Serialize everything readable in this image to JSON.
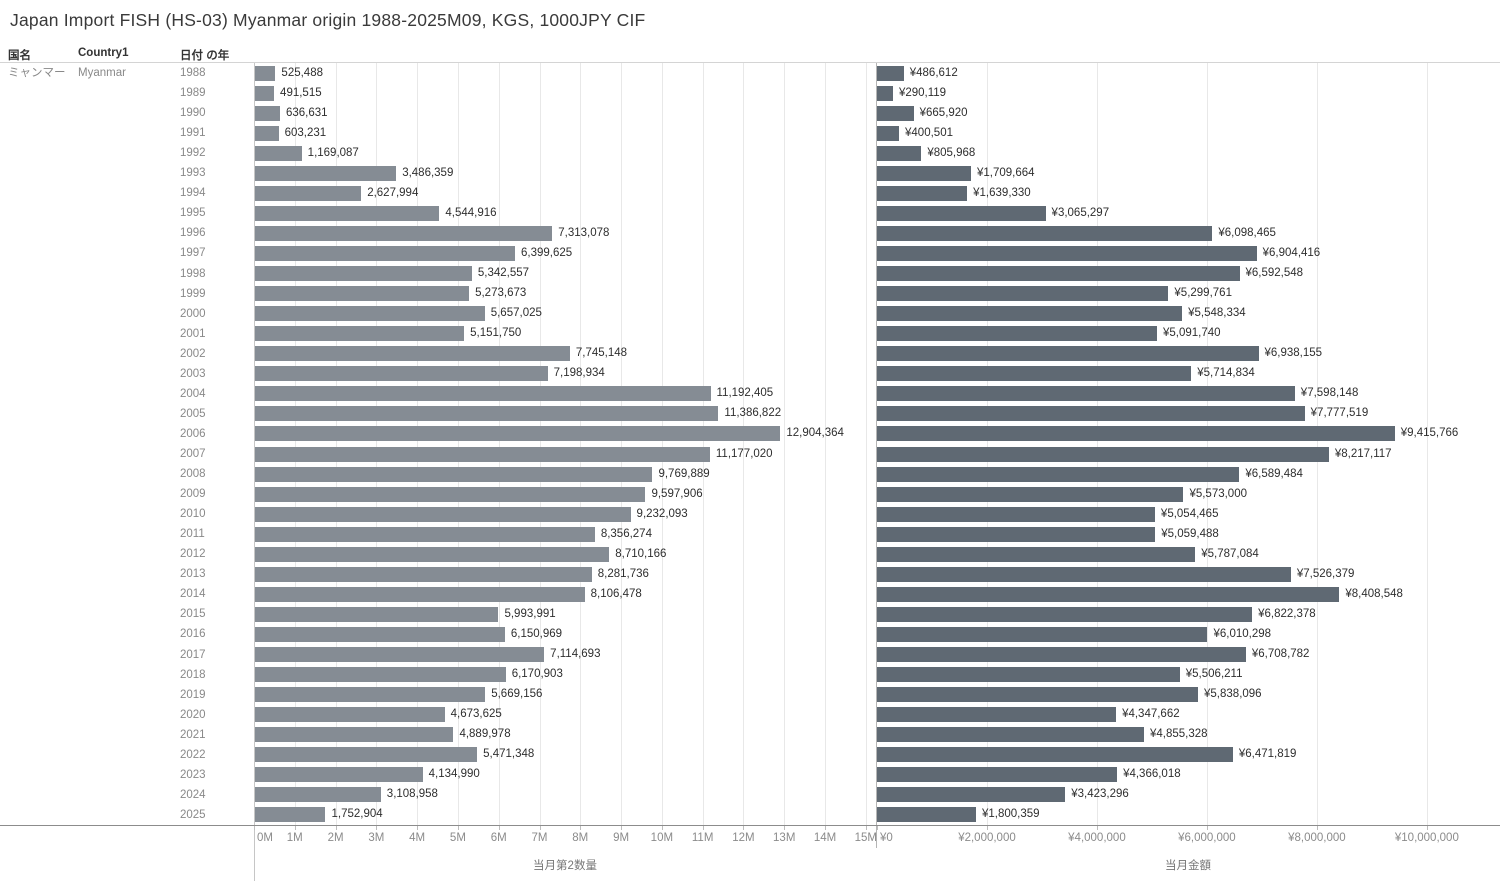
{
  "title": "Japan Import FISH (HS-03) Myanmar origin 1988-2025M09, KGS, 1000JPY CIF",
  "table": {
    "headers": {
      "country_jp": "国名",
      "country_en": "Country1",
      "year": "日付 の年"
    },
    "row": {
      "country_jp": "ミャンマー",
      "country_en": "Myanmar"
    }
  },
  "colors": {
    "quantity_bar": "#858c94",
    "amount_bar": "#5f6973",
    "gridline": "#e8e8e8",
    "bar_label": "#2e2e2e",
    "row_label": "#898989"
  },
  "chart_data": [
    {
      "type": "bar",
      "orientation": "horizontal",
      "name": "quantity",
      "xlabel": "当月第2数量",
      "xlim": [
        0,
        15250000
      ],
      "grid": true,
      "gridlines": [
        1000000,
        2000000,
        3000000,
        4000000,
        5000000,
        6000000,
        7000000,
        8000000,
        9000000,
        10000000,
        11000000,
        12000000,
        13000000,
        14000000,
        15000000
      ],
      "ticks": [
        {
          "value": 0,
          "label": "0M"
        },
        {
          "value": 1000000,
          "label": "1M"
        },
        {
          "value": 2000000,
          "label": "2M"
        },
        {
          "value": 3000000,
          "label": "3M"
        },
        {
          "value": 4000000,
          "label": "4M"
        },
        {
          "value": 5000000,
          "label": "5M"
        },
        {
          "value": 6000000,
          "label": "6M"
        },
        {
          "value": 7000000,
          "label": "7M"
        },
        {
          "value": 8000000,
          "label": "8M"
        },
        {
          "value": 9000000,
          "label": "9M"
        },
        {
          "value": 10000000,
          "label": "10M"
        },
        {
          "value": 11000000,
          "label": "11M"
        },
        {
          "value": 12000000,
          "label": "12M"
        },
        {
          "value": 13000000,
          "label": "13M"
        },
        {
          "value": 14000000,
          "label": "14M"
        },
        {
          "value": 15000000,
          "label": "15M"
        }
      ],
      "categories": [
        "1988",
        "1989",
        "1990",
        "1991",
        "1992",
        "1993",
        "1994",
        "1995",
        "1996",
        "1997",
        "1998",
        "1999",
        "2000",
        "2001",
        "2002",
        "2003",
        "2004",
        "2005",
        "2006",
        "2007",
        "2008",
        "2009",
        "2010",
        "2011",
        "2012",
        "2013",
        "2014",
        "2015",
        "2016",
        "2017",
        "2018",
        "2019",
        "2020",
        "2021",
        "2022",
        "2023",
        "2024",
        "2025"
      ],
      "values": [
        525488,
        491515,
        636631,
        603231,
        1169087,
        3486359,
        2627994,
        4544916,
        7313078,
        6399625,
        5342557,
        5273673,
        5657025,
        5151750,
        7745148,
        7198934,
        11192405,
        11386822,
        12904364,
        11177020,
        9769889,
        9597906,
        9232093,
        8356274,
        8710166,
        8281736,
        8106478,
        5993991,
        6150969,
        7114693,
        6170903,
        5669156,
        4673625,
        4889978,
        5471348,
        4134990,
        3108958,
        1752904
      ],
      "labels": [
        "525,488",
        "491,515",
        "636,631",
        "603,231",
        "1,169,087",
        "3,486,359",
        "2,627,994",
        "4,544,916",
        "7,313,078",
        "6,399,625",
        "5,342,557",
        "5,273,673",
        "5,657,025",
        "5,151,750",
        "7,745,148",
        "7,198,934",
        "11,192,405",
        "11,386,822",
        "12,904,364",
        "11,177,020",
        "9,769,889",
        "9,597,906",
        "9,232,093",
        "8,356,274",
        "8,710,166",
        "8,281,736",
        "8,106,478",
        "5,993,991",
        "6,150,969",
        "7,114,693",
        "6,170,903",
        "5,669,156",
        "4,673,625",
        "4,889,978",
        "5,471,348",
        "4,134,990",
        "3,108,958",
        "1,752,904"
      ]
    },
    {
      "type": "bar",
      "orientation": "horizontal",
      "name": "amount",
      "xlabel": "当月金額",
      "xlim": [
        0,
        11330000
      ],
      "grid": true,
      "gridlines": [
        2000000,
        4000000,
        6000000,
        8000000,
        10000000
      ],
      "ticks": [
        {
          "value": 0,
          "label": "¥0"
        },
        {
          "value": 2000000,
          "label": "¥2,000,000"
        },
        {
          "value": 4000000,
          "label": "¥4,000,000"
        },
        {
          "value": 6000000,
          "label": "¥6,000,000"
        },
        {
          "value": 8000000,
          "label": "¥8,000,000"
        },
        {
          "value": 10000000,
          "label": "¥10,000,000"
        }
      ],
      "categories": [
        "1988",
        "1989",
        "1990",
        "1991",
        "1992",
        "1993",
        "1994",
        "1995",
        "1996",
        "1997",
        "1998",
        "1999",
        "2000",
        "2001",
        "2002",
        "2003",
        "2004",
        "2005",
        "2006",
        "2007",
        "2008",
        "2009",
        "2010",
        "2011",
        "2012",
        "2013",
        "2014",
        "2015",
        "2016",
        "2017",
        "2018",
        "2019",
        "2020",
        "2021",
        "2022",
        "2023",
        "2024",
        "2025"
      ],
      "values": [
        486612,
        290119,
        665920,
        400501,
        805968,
        1709664,
        1639330,
        3065297,
        6098465,
        6904416,
        6592548,
        5299761,
        5548334,
        5091740,
        6938155,
        5714834,
        7598148,
        7777519,
        9415766,
        8217117,
        6589484,
        5573000,
        5054465,
        5059488,
        5787084,
        7526379,
        8408548,
        6822378,
        6010298,
        6708782,
        5506211,
        5838096,
        4347662,
        4855328,
        6471819,
        4366018,
        3423296,
        1800359
      ],
      "labels": [
        "¥486,612",
        "¥290,119",
        "¥665,920",
        "¥400,501",
        "¥805,968",
        "¥1,709,664",
        "¥1,639,330",
        "¥3,065,297",
        "¥6,098,465",
        "¥6,904,416",
        "¥6,592,548",
        "¥5,299,761",
        "¥5,548,334",
        "¥5,091,740",
        "¥6,938,155",
        "¥5,714,834",
        "¥7,598,148",
        "¥7,777,519",
        "¥9,415,766",
        "¥8,217,117",
        "¥6,589,484",
        "¥5,573,000",
        "¥5,054,465",
        "¥5,059,488",
        "¥5,787,084",
        "¥7,526,379",
        "¥8,408,548",
        "¥6,822,378",
        "¥6,010,298",
        "¥6,708,782",
        "¥5,506,211",
        "¥5,838,096",
        "¥4,347,662",
        "¥4,855,328",
        "¥6,471,819",
        "¥4,366,018",
        "¥3,423,296",
        "¥1,800,359"
      ]
    }
  ]
}
